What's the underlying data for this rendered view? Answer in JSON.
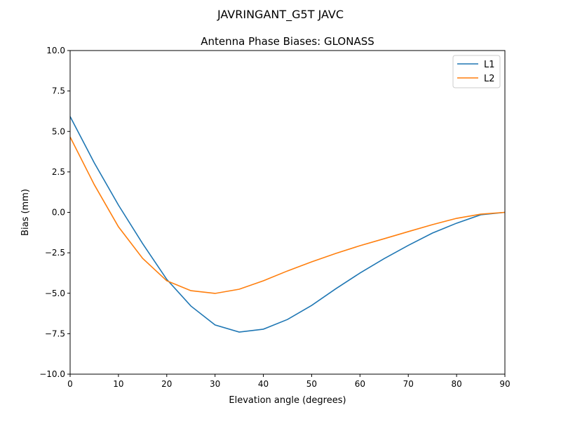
{
  "chart_data": {
    "type": "line",
    "suptitle": "JAVRINGANT_G5T  JAVC",
    "title": "Antenna Phase Biases: GLONASS",
    "xlabel": "Elevation angle (degrees)",
    "ylabel": "Bias (mm)",
    "xlim": [
      0,
      90
    ],
    "ylim": [
      -10,
      10
    ],
    "xticks": [
      "0",
      "10",
      "20",
      "30",
      "40",
      "50",
      "60",
      "70",
      "80",
      "90"
    ],
    "yticks": [
      "10.0",
      "7.5",
      "5.0",
      "2.5",
      "0.0",
      "−2.5",
      "−5.0",
      "−7.5",
      "−10.0"
    ],
    "grid": false,
    "legend_position": "top-right",
    "x": [
      0,
      5,
      10,
      15,
      20,
      25,
      30,
      35,
      40,
      45,
      50,
      55,
      60,
      65,
      70,
      75,
      80,
      85,
      90
    ],
    "series": [
      {
        "name": "L1",
        "color": "#1f77b4",
        "values": [
          5.92,
          3.06,
          0.45,
          -1.93,
          -4.14,
          -5.79,
          -6.96,
          -7.4,
          -7.22,
          -6.62,
          -5.75,
          -4.72,
          -3.75,
          -2.86,
          -2.04,
          -1.28,
          -0.67,
          -0.15,
          0.0
        ]
      },
      {
        "name": "L2",
        "color": "#ff7f0e",
        "values": [
          4.66,
          1.71,
          -0.89,
          -2.84,
          -4.23,
          -4.84,
          -5.01,
          -4.75,
          -4.23,
          -3.62,
          -3.06,
          -2.54,
          -2.06,
          -1.63,
          -1.19,
          -0.76,
          -0.37,
          -0.11,
          0.0
        ]
      }
    ]
  }
}
